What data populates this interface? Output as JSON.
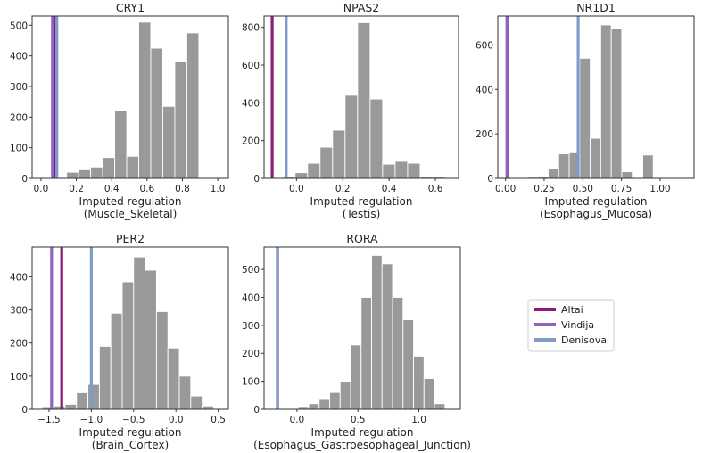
{
  "legend": {
    "placement": "center-right",
    "entries": [
      {
        "name": "Altai",
        "color": "#8e1a78"
      },
      {
        "name": "Vindija",
        "color": "#8f62c2"
      },
      {
        "name": "Denisova",
        "color": "#7f9cc9"
      }
    ]
  },
  "chart_data": [
    {
      "type": "bar",
      "title": "CRY1",
      "xlabel": "Imputed regulation",
      "xsublabel": "(Muscle_Skeletal)",
      "xlim": [
        -0.05,
        1.06
      ],
      "ylim": [
        0,
        530
      ],
      "xticks": [
        0.0,
        0.2,
        0.4,
        0.6,
        0.8,
        1.0
      ],
      "xtick_labels": [
        "0.0",
        "0.2",
        "0.4",
        "0.6",
        "0.8",
        "1.0"
      ],
      "yticks": [
        0,
        100,
        200,
        300,
        400,
        500
      ],
      "ytick_labels": [
        "0",
        "100",
        "200",
        "300",
        "400",
        "500"
      ],
      "bin_edges": [
        0.145,
        0.213,
        0.281,
        0.349,
        0.417,
        0.485,
        0.553,
        0.621,
        0.689,
        0.757,
        0.825,
        0.893
      ],
      "counts": [
        20,
        28,
        37,
        68,
        220,
        72,
        510,
        425,
        235,
        380,
        475,
        28
      ],
      "markers": [
        {
          "name": "Altai",
          "x": 0.075
        },
        {
          "name": "Vindija",
          "x": 0.065
        },
        {
          "name": "Denisova",
          "x": 0.09
        }
      ]
    },
    {
      "type": "bar",
      "title": "NPAS2",
      "xlabel": "Imputed regulation",
      "xsublabel": "(Testis)",
      "xlim": [
        -0.14,
        0.7
      ],
      "ylim": [
        0,
        860
      ],
      "xticks": [
        0.0,
        0.2,
        0.4,
        0.6
      ],
      "xtick_labels": [
        "0.0",
        "0.2",
        "0.4",
        "0.6"
      ],
      "yticks": [
        0,
        200,
        400,
        600,
        800
      ],
      "ytick_labels": [
        "0",
        "200",
        "400",
        "600",
        "800"
      ],
      "bin_edges": [
        -0.06,
        -0.006,
        0.048,
        0.102,
        0.156,
        0.21,
        0.264,
        0.318,
        0.372,
        0.426,
        0.48,
        0.534,
        0.588,
        0.642
      ],
      "counts": [
        10,
        30,
        80,
        165,
        255,
        440,
        825,
        420,
        75,
        90,
        80,
        8,
        8
      ],
      "markers": [
        {
          "name": "Altai",
          "x": -0.105
        },
        {
          "name": "Vindija",
          "x": -0.045
        },
        {
          "name": "Denisova",
          "x": -0.045
        }
      ]
    },
    {
      "type": "bar",
      "title": "NR1D1",
      "xlabel": "Imputed regulation",
      "xsublabel": "(Esophagus_Mucosa)",
      "xlim": [
        -0.05,
        1.22
      ],
      "ylim": [
        0,
        730
      ],
      "xticks": [
        0.0,
        0.25,
        0.5,
        0.75,
        1.0
      ],
      "xtick_labels": [
        "0.00",
        "0.25",
        "0.50",
        "0.75",
        "1.00"
      ],
      "yticks": [
        0,
        200,
        400,
        600
      ],
      "ytick_labels": [
        "0",
        "200",
        "400",
        "600"
      ],
      "bin_edges": [
        0.14,
        0.208,
        0.276,
        0.344,
        0.412,
        0.48,
        0.548,
        0.616,
        0.684,
        0.752,
        0.82,
        0.888,
        0.956
      ],
      "counts": [
        5,
        10,
        45,
        110,
        115,
        540,
        180,
        690,
        675,
        30,
        2,
        105
      ],
      "markers": [
        {
          "name": "Altai",
          "x": 0.01
        },
        {
          "name": "Vindija",
          "x": 0.01
        },
        {
          "name": "Denisova",
          "x": 0.47
        }
      ]
    },
    {
      "type": "bar",
      "title": "PER2",
      "xlabel": "Imputed regulation",
      "xsublabel": "(Brain_Cortex)",
      "xlim": [
        -1.7,
        0.62
      ],
      "ylim": [
        0,
        490
      ],
      "xticks": [
        -1.5,
        -1.0,
        -0.5,
        0.0,
        0.5
      ],
      "xtick_labels": [
        "−1.5",
        "−1.0",
        "−0.5",
        "0.0",
        "0.5"
      ],
      "yticks": [
        0,
        100,
        200,
        300,
        400
      ],
      "ytick_labels": [
        "0",
        "100",
        "200",
        "300",
        "400"
      ],
      "bin_edges": [
        -1.58,
        -1.445,
        -1.31,
        -1.175,
        -1.04,
        -0.905,
        -0.77,
        -0.635,
        -0.5,
        -0.365,
        -0.23,
        -0.095,
        0.04,
        0.175,
        0.31,
        0.445
      ],
      "counts": [
        8,
        10,
        15,
        50,
        75,
        190,
        290,
        385,
        460,
        420,
        295,
        185,
        100,
        40,
        10
      ],
      "markers": [
        {
          "name": "Altai",
          "x": -1.35
        },
        {
          "name": "Vindija",
          "x": -1.47
        },
        {
          "name": "Denisova",
          "x": -1.0
        }
      ]
    },
    {
      "type": "bar",
      "title": "RORA",
      "xlabel": "Imputed regulation",
      "xsublabel": "(Esophagus_Gastroesophageal_Junction)",
      "xlim": [
        -0.27,
        1.34
      ],
      "ylim": [
        0,
        580
      ],
      "xticks": [
        0.0,
        0.5,
        1.0
      ],
      "xtick_labels": [
        "0.0",
        "0.5",
        "1.0"
      ],
      "yticks": [
        0,
        100,
        200,
        300,
        400,
        500
      ],
      "ytick_labels": [
        "0",
        "100",
        "200",
        "300",
        "400",
        "500"
      ],
      "bin_edges": [
        0.01,
        0.096,
        0.182,
        0.268,
        0.354,
        0.44,
        0.526,
        0.612,
        0.698,
        0.784,
        0.87,
        0.956,
        1.042,
        1.128,
        1.214
      ],
      "counts": [
        10,
        20,
        35,
        60,
        100,
        230,
        400,
        550,
        520,
        400,
        320,
        190,
        110,
        20
      ],
      "markers": [
        {
          "name": "Altai",
          "x": -0.16
        },
        {
          "name": "Vindija",
          "x": -0.16
        },
        {
          "name": "Denisova",
          "x": -0.16
        }
      ]
    }
  ]
}
